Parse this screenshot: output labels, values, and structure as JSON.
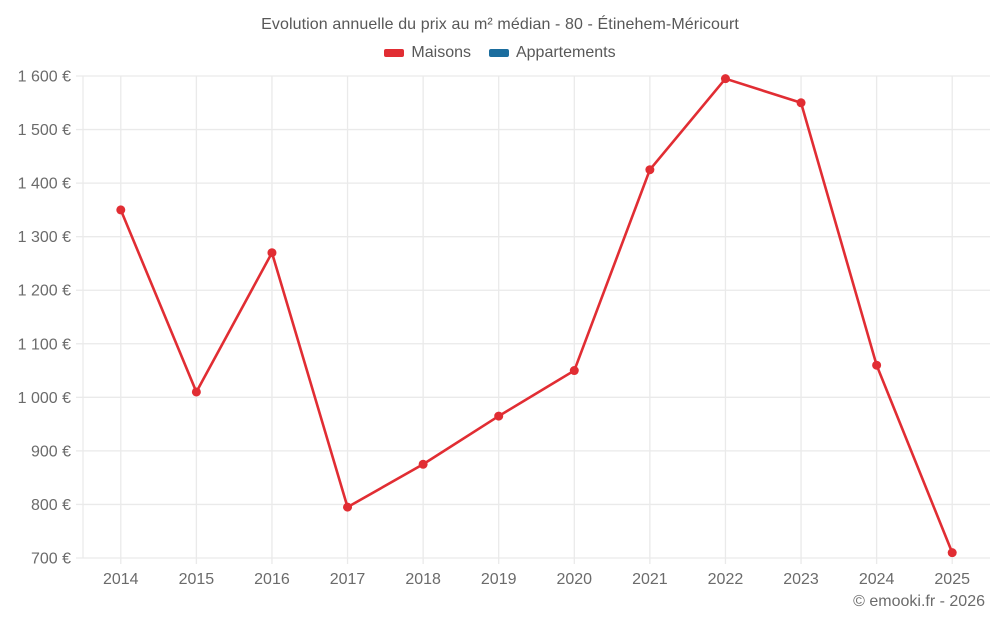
{
  "chart_data": {
    "type": "line",
    "title": "Evolution annuelle du prix au m² médian - 80 - Étinehem-Méricourt",
    "categories": [
      "2014",
      "2015",
      "2016",
      "2017",
      "2018",
      "2019",
      "2020",
      "2021",
      "2022",
      "2023",
      "2024",
      "2025"
    ],
    "series": [
      {
        "name": "Maisons",
        "color": "#e12d33",
        "values": [
          1350,
          1010,
          1270,
          795,
          875,
          965,
          1050,
          1425,
          1595,
          1550,
          1060,
          710
        ]
      },
      {
        "name": "Appartements",
        "color": "#1b6d9e",
        "values": []
      }
    ],
    "ylim": [
      700,
      1600
    ],
    "ytick_step": 100,
    "ytick_labels": [
      "700 €",
      "800 €",
      "900 €",
      "1 000 €",
      "1 100 €",
      "1 200 €",
      "1 300 €",
      "1 400 €",
      "1 500 €",
      "1 600 €"
    ],
    "xlabel": "",
    "ylabel": "",
    "grid": true,
    "legend_position": "top"
  },
  "attribution": "© emooki.fr - 2026",
  "colors": {
    "grid": "#eaeaea",
    "tick_label": "#6b6b6b",
    "title_text": "#585858"
  }
}
